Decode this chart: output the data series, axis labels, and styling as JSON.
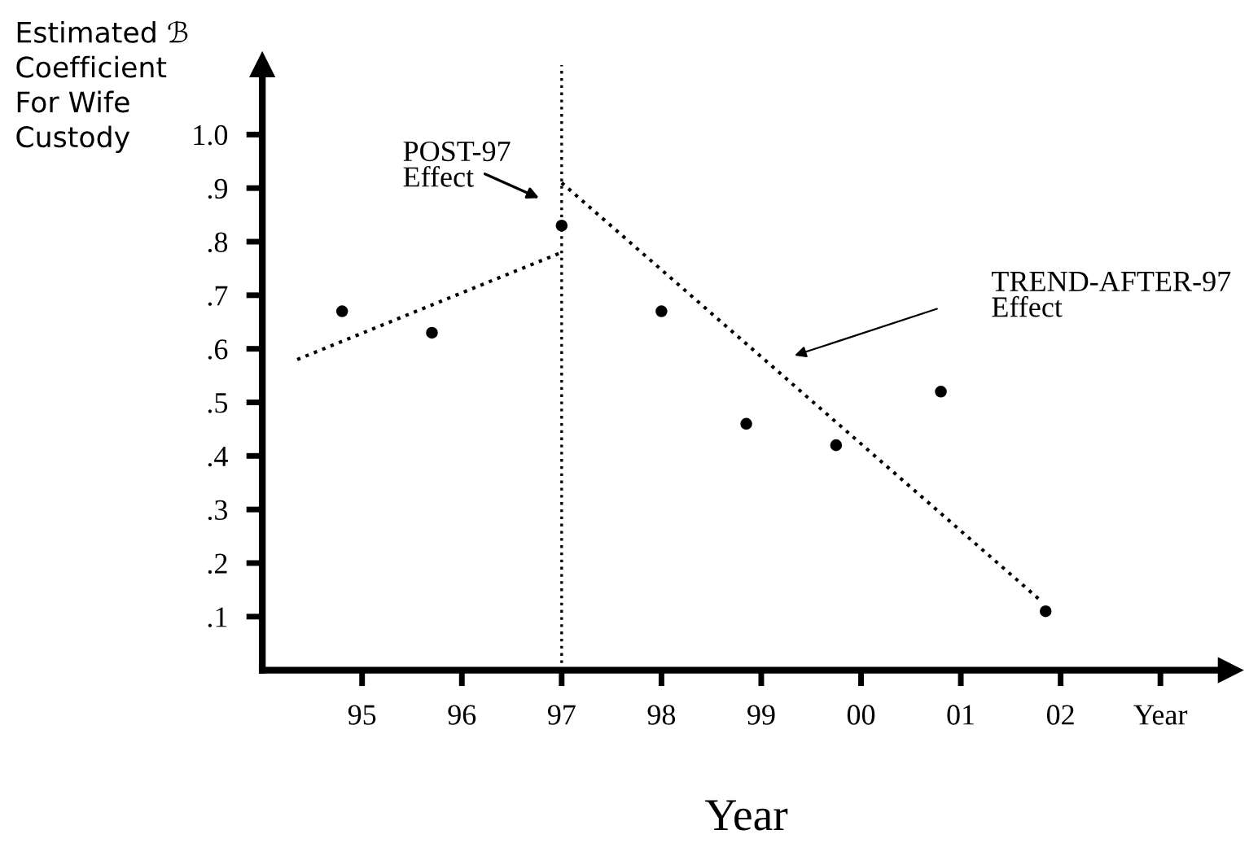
{
  "chart_data": {
    "type": "scatter",
    "ylabel": "Estimated ℬ\nCoefficient\nFor Wife\nCustody",
    "xlabel": "Year",
    "series": [
      {
        "color": "#000000",
        "marker": "circle",
        "x": [
          1994.8,
          1995.7,
          1997.0,
          1998.0,
          1998.85,
          1999.75,
          2000.8,
          2001.85
        ],
        "values": [
          0.67,
          0.63,
          0.83,
          0.67,
          0.46,
          0.42,
          0.52,
          0.11
        ]
      },
      {
        "type": "line",
        "color": "#000000",
        "line_style": "dotted",
        "marker": "none",
        "x": [
          1994.35,
          1997.0
        ],
        "values": [
          0.58,
          0.78
        ]
      },
      {
        "type": "line",
        "color": "#000000",
        "line_style": "dotted",
        "marker": "none",
        "x": [
          1997.0,
          2001.8
        ],
        "values": [
          0.91,
          0.13
        ]
      }
    ],
    "ref_lines": [
      {
        "axis": "x",
        "value": 1997,
        "color": "#000000",
        "line_style": "dotted"
      }
    ],
    "annotations": [
      "POST-97\nEffect",
      "TREND-AFTER-97\nEffect"
    ],
    "xlim": [
      1994,
      2003.7
    ],
    "ylim": [
      0,
      1.13
    ],
    "xticks": [
      {
        "value": 1995,
        "label": "95"
      },
      {
        "value": 1996,
        "label": "96"
      },
      {
        "value": 1997,
        "label": "97"
      },
      {
        "value": 1998,
        "label": "98"
      },
      {
        "value": 1999,
        "label": "99"
      },
      {
        "value": 2000,
        "label": "00"
      },
      {
        "value": 2001,
        "label": "01"
      },
      {
        "value": 2002,
        "label": "02"
      },
      {
        "value": 2003,
        "label": "Year"
      }
    ],
    "yticks": [
      {
        "value": 0.1,
        "label": ".1"
      },
      {
        "value": 0.2,
        "label": ".2"
      },
      {
        "value": 0.3,
        "label": ".3"
      },
      {
        "value": 0.4,
        "label": ".4"
      },
      {
        "value": 0.5,
        "label": ".5"
      },
      {
        "value": 0.6,
        "label": ".6"
      },
      {
        "value": 0.7,
        "label": ".7"
      },
      {
        "value": 0.8,
        "label": ".8"
      },
      {
        "value": 0.9,
        "label": ".9"
      },
      {
        "value": 1.0,
        "label": "1.0"
      }
    ],
    "grid": false,
    "legend": false
  }
}
